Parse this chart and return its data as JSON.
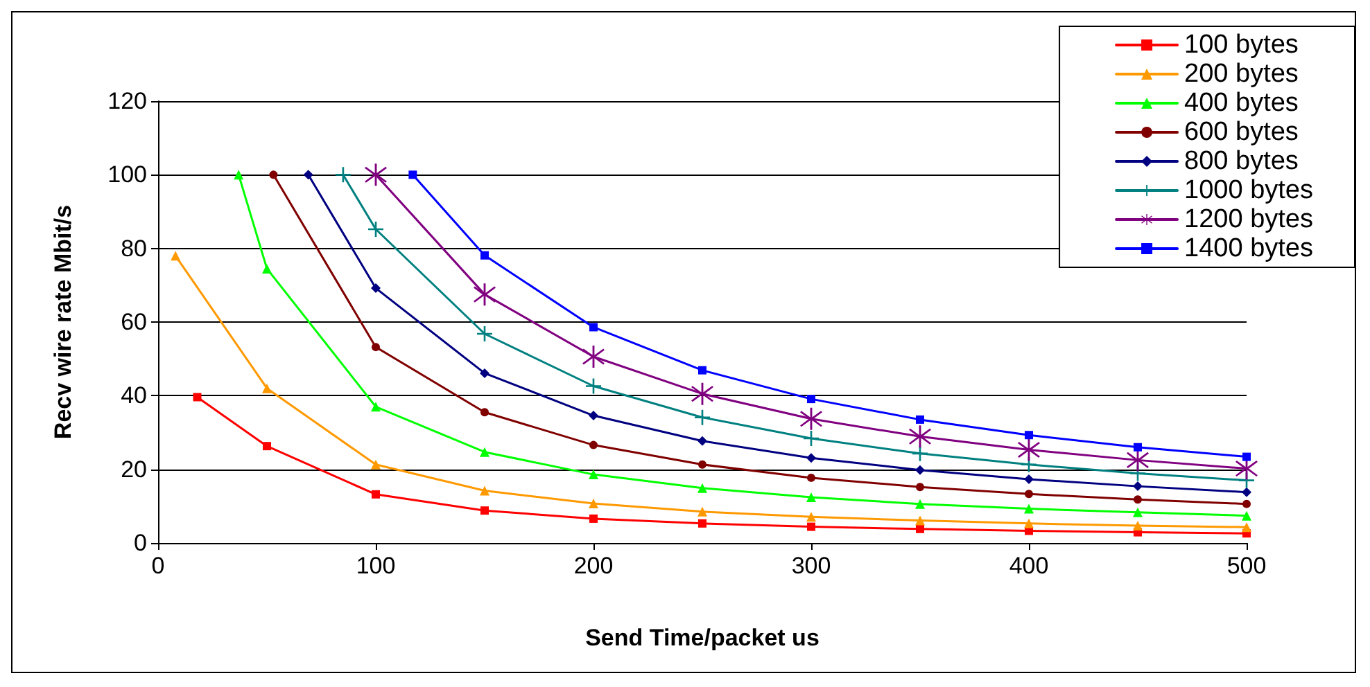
{
  "chart_data": {
    "type": "line",
    "xlabel": "Send Time/packet us",
    "ylabel": "Recv wire rate Mbit/s",
    "xlim": [
      0,
      500
    ],
    "xticks": [
      0,
      100,
      200,
      300,
      400,
      500
    ],
    "ylim": [
      0,
      120
    ],
    "yticks": [
      0,
      20,
      40,
      60,
      80,
      100,
      120
    ],
    "grid": "y",
    "legend": "top right",
    "line_style": "solid",
    "series": [
      {
        "name": "100 bytes",
        "color": "#ff0000",
        "marker": "square",
        "x": [
          18,
          50,
          100,
          150,
          200,
          250,
          300,
          350,
          400,
          450,
          500
        ],
        "values": [
          39.6,
          26.3,
          13.2,
          8.8,
          6.6,
          5.3,
          4.4,
          3.8,
          3.3,
          2.9,
          2.6
        ]
      },
      {
        "name": "200 bytes",
        "color": "#ff9900",
        "marker": "triangle",
        "x": [
          8,
          50,
          100,
          150,
          200,
          250,
          300,
          350,
          400,
          450,
          500
        ],
        "values": [
          78,
          42,
          21.3,
          14.2,
          10.7,
          8.5,
          7.1,
          6.1,
          5.3,
          4.7,
          4.3
        ]
      },
      {
        "name": "400 bytes",
        "color": "#00ff00",
        "marker": "triangle",
        "x": [
          37,
          50,
          100,
          150,
          200,
          250,
          300,
          350,
          400,
          450,
          500
        ],
        "values": [
          100,
          74.5,
          37,
          24.7,
          18.6,
          14.9,
          12.4,
          10.6,
          9.3,
          8.3,
          7.4
        ]
      },
      {
        "name": "600 bytes",
        "color": "#800000",
        "marker": "circle",
        "x": [
          53,
          100,
          150,
          200,
          250,
          300,
          350,
          400,
          450,
          500
        ],
        "values": [
          100,
          53.2,
          35.5,
          26.6,
          21.3,
          17.7,
          15.2,
          13.3,
          11.8,
          10.6
        ]
      },
      {
        "name": "800 bytes",
        "color": "#000080",
        "marker": "diamond",
        "x": [
          69,
          100,
          150,
          200,
          250,
          300,
          350,
          400,
          450,
          500
        ],
        "values": [
          100,
          69.2,
          46.1,
          34.6,
          27.7,
          23.1,
          19.8,
          17.3,
          15.4,
          13.8
        ]
      },
      {
        "name": "1000 bytes",
        "color": "#008080",
        "marker": "cross",
        "x": [
          85,
          100,
          150,
          200,
          250,
          300,
          350,
          400,
          450,
          500
        ],
        "values": [
          100,
          85.2,
          56.8,
          42.6,
          34.1,
          28.4,
          24.3,
          21.3,
          18.9,
          17.0
        ]
      },
      {
        "name": "1200 bytes",
        "color": "#800080",
        "marker": "star",
        "x": [
          100,
          150,
          200,
          250,
          300,
          350,
          400,
          450,
          500
        ],
        "values": [
          100,
          67.5,
          50.6,
          40.5,
          33.7,
          28.9,
          25.3,
          22.5,
          20.2
        ]
      },
      {
        "name": "1400 bytes",
        "color": "#0000ff",
        "marker": "square",
        "x": [
          117,
          150,
          200,
          250,
          300,
          350,
          400,
          450,
          500
        ],
        "values": [
          100,
          78.1,
          58.6,
          46.9,
          39.1,
          33.5,
          29.3,
          26.0,
          23.4
        ]
      }
    ]
  }
}
